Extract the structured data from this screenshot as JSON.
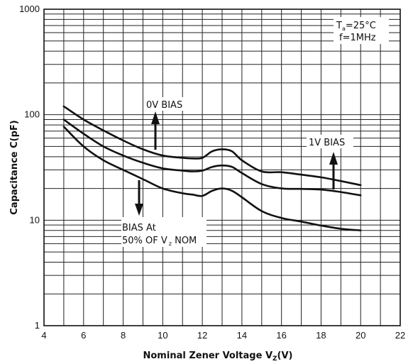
{
  "chart_data": {
    "type": "line",
    "xlabel": "Nominal Zener Voltage  V",
    "xlabel_sub": "Z",
    "xlabel_unit": "(V)",
    "ylabel": "Capacitance  C(pF)",
    "xlim": [
      4,
      22
    ],
    "ylim": [
      1,
      1000
    ],
    "yscale": "log",
    "grid": true,
    "x_ticks": [
      "4",
      "6",
      "8",
      "10",
      "12",
      "14",
      "16",
      "18",
      "20",
      "22"
    ],
    "y_ticks": [
      "1",
      "10",
      "100",
      "1000"
    ],
    "conditions": {
      "temp_label": "T",
      "temp_sub": "a",
      "temp_value": "=25°C",
      "freq": "f=1MHz"
    },
    "annotations": {
      "zero_bias": "0V BIAS",
      "one_bias": "1V BIAS",
      "half_bias_line1": "BIAS  At",
      "half_bias_line2a": "50% OF V",
      "half_bias_sub": "z",
      "half_bias_line2b": " NOM"
    },
    "series": [
      {
        "x": [
          5,
          6,
          7,
          8,
          9,
          10,
          11,
          11.5,
          12,
          12.5,
          13,
          13.5,
          14,
          15,
          16,
          17,
          18,
          19,
          20
        ],
        "y": [
          120,
          90,
          71,
          57,
          47,
          41,
          39,
          38.5,
          39,
          45,
          47,
          45,
          37,
          29,
          28.5,
          27,
          25.5,
          23.5,
          21.5
        ]
      },
      {
        "x": [
          5,
          6,
          7,
          8,
          9,
          10,
          11,
          11.5,
          12,
          12.5,
          13,
          13.5,
          14,
          15,
          16,
          17,
          18,
          19,
          20
        ],
        "y": [
          90,
          66,
          50,
          41,
          35,
          31,
          29.5,
          29,
          29.5,
          32,
          33,
          32,
          28,
          22,
          20,
          19.8,
          19.5,
          18.5,
          17.2
        ]
      },
      {
        "x": [
          5,
          6,
          7,
          8,
          9,
          10,
          11,
          11.5,
          12,
          12.5,
          13,
          13.5,
          14,
          15,
          16,
          17,
          18,
          19,
          20
        ],
        "y": [
          77,
          50,
          37,
          30,
          24.5,
          20,
          18,
          17.5,
          17,
          19,
          20,
          19,
          16.5,
          12.2,
          10.5,
          9.7,
          8.9,
          8.3,
          8.0
        ]
      }
    ]
  }
}
